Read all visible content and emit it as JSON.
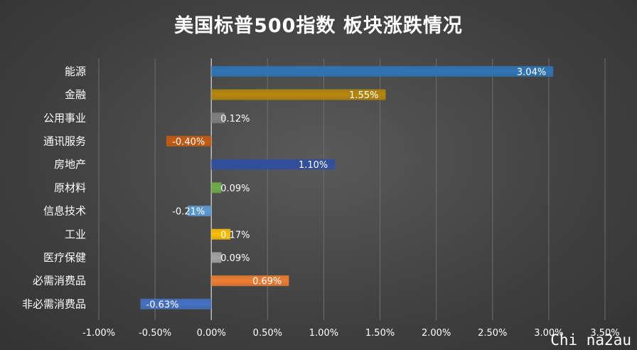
{
  "chart_data": {
    "type": "bar",
    "orientation": "horizontal",
    "title": "美国标普500指数 板块涨跌情况",
    "categories": [
      "能源",
      "金融",
      "公用事业",
      "通讯服务",
      "房地产",
      "原材料",
      "信息技术",
      "工业",
      "医疗保健",
      "必需消费品",
      "非必需消费品"
    ],
    "values": [
      3.04,
      1.55,
      0.12,
      -0.4,
      1.1,
      0.09,
      -0.21,
      0.17,
      0.09,
      0.69,
      -0.63
    ],
    "value_labels": [
      "3.04%",
      "1.55%",
      "0.12%",
      "-0.40%",
      "1.10%",
      "0.09%",
      "-0.21%",
      "0.17%",
      "0.09%",
      "0.69%",
      "-0.63%"
    ],
    "colors": [
      "#2e75b6",
      "#b8860b",
      "#7f7f7f",
      "#c55a11",
      "#2f4f9f",
      "#70ad47",
      "#5b9bd5",
      "#ffc000",
      "#a5a5a5",
      "#ed7d31",
      "#4472c4"
    ],
    "xlim": [
      -1.0,
      3.5
    ],
    "x_ticks": [
      -1.0,
      -0.5,
      0.0,
      0.5,
      1.0,
      1.5,
      2.0,
      2.5,
      3.0,
      3.5
    ],
    "x_tick_labels": [
      "-1.00%",
      "-0.50%",
      "0.00%",
      "0.50%",
      "1.00%",
      "1.50%",
      "2.00%",
      "2.50%",
      "3.00%",
      "3.50%"
    ],
    "grid": true,
    "legend": "none"
  },
  "watermark": "Chi na2au"
}
